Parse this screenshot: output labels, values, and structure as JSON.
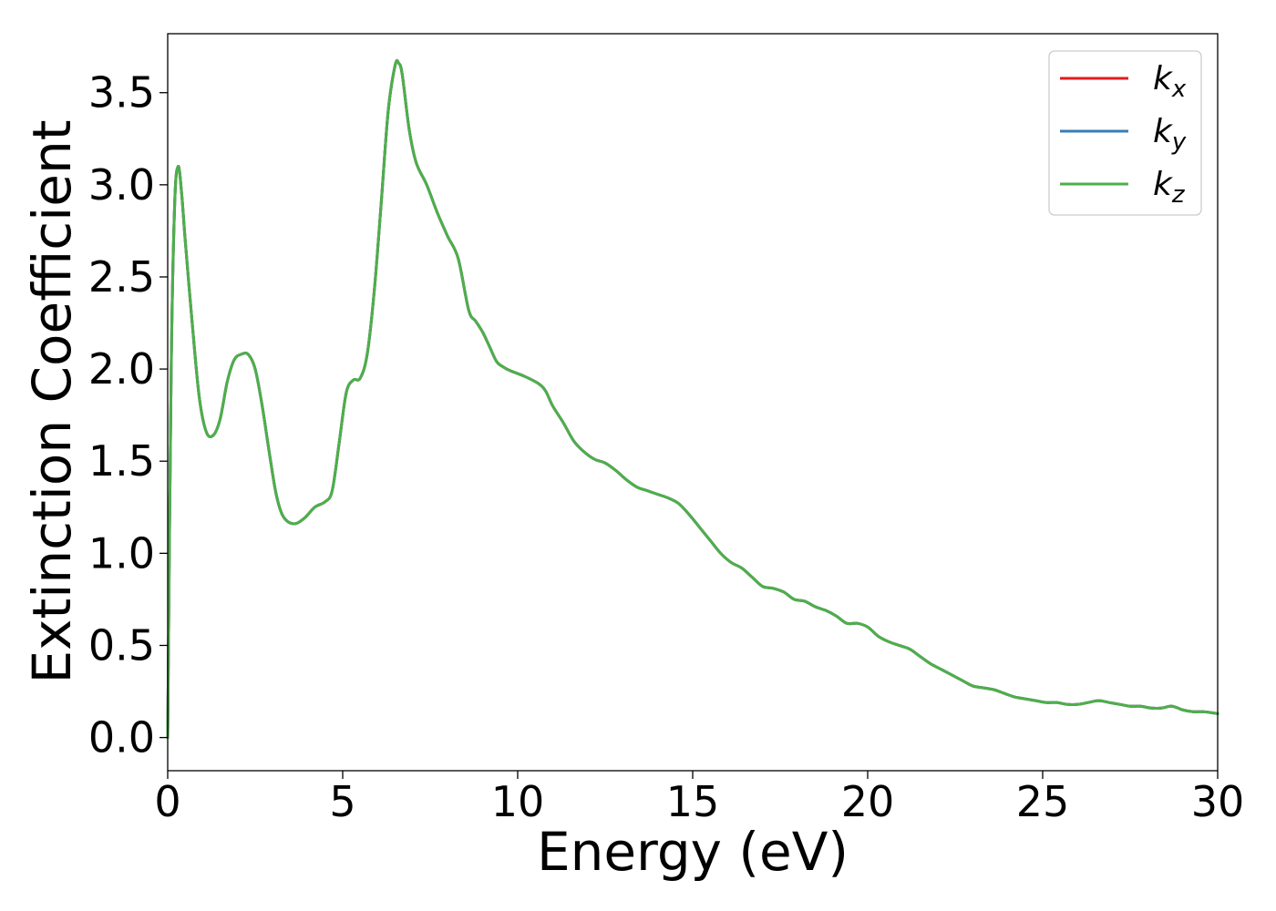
{
  "chart_data": {
    "type": "line",
    "title": "",
    "xlabel": "Energy (eV)",
    "ylabel": "Extinction Coefficient",
    "xlim": [
      0,
      30
    ],
    "ylim": [
      -0.18,
      3.82
    ],
    "xticks": [
      0,
      5,
      10,
      15,
      20,
      25,
      30
    ],
    "xtick_labels": [
      "0",
      "5",
      "10",
      "15",
      "20",
      "25",
      "30"
    ],
    "yticks": [
      0.0,
      0.5,
      1.0,
      1.5,
      2.0,
      2.5,
      3.0,
      3.5
    ],
    "ytick_labels": [
      "0.0",
      "0.5",
      "1.0",
      "1.5",
      "2.0",
      "2.5",
      "3.0",
      "3.5"
    ],
    "grid": false,
    "legend_position": "top-right",
    "x": [
      0.0,
      0.1,
      0.2,
      0.3,
      0.4,
      0.5,
      0.7,
      0.9,
      1.1,
      1.3,
      1.5,
      1.7,
      1.9,
      2.1,
      2.3,
      2.5,
      2.7,
      2.9,
      3.1,
      3.3,
      3.6,
      3.9,
      4.2,
      4.5,
      4.7,
      4.9,
      5.1,
      5.3,
      5.5,
      5.7,
      5.9,
      6.1,
      6.3,
      6.5,
      6.6,
      6.7,
      6.9,
      7.1,
      7.4,
      7.7,
      8.0,
      8.3,
      8.6,
      8.8,
      9.0,
      9.2,
      9.4,
      9.6,
      9.8,
      10.2,
      10.6,
      10.8,
      11.0,
      11.3,
      11.6,
      11.9,
      12.2,
      12.5,
      12.8,
      13.1,
      13.4,
      13.7,
      14.0,
      14.3,
      14.6,
      14.9,
      15.2,
      15.5,
      15.8,
      16.1,
      16.4,
      16.7,
      17.0,
      17.3,
      17.6,
      17.9,
      18.2,
      18.5,
      18.8,
      19.1,
      19.4,
      19.7,
      20.0,
      20.3,
      20.6,
      20.9,
      21.2,
      21.5,
      21.8,
      22.1,
      22.4,
      22.7,
      23.0,
      23.3,
      23.6,
      23.9,
      24.2,
      24.5,
      24.8,
      25.1,
      25.4,
      25.7,
      26.0,
      26.3,
      26.6,
      26.9,
      27.2,
      27.5,
      27.8,
      28.1,
      28.4,
      28.7,
      29.0,
      29.3,
      29.6,
      30.0
    ],
    "series": [
      {
        "name": "k_x",
        "color": "#e41a1c",
        "values": [
          0.0,
          2.0,
          2.9,
          3.1,
          2.95,
          2.7,
          2.25,
          1.85,
          1.66,
          1.64,
          1.73,
          1.93,
          2.05,
          2.08,
          2.08,
          2.0,
          1.8,
          1.55,
          1.32,
          1.2,
          1.16,
          1.19,
          1.25,
          1.28,
          1.34,
          1.6,
          1.87,
          1.94,
          1.95,
          2.08,
          2.42,
          2.9,
          3.4,
          3.65,
          3.66,
          3.6,
          3.3,
          3.12,
          3.0,
          2.85,
          2.72,
          2.6,
          2.32,
          2.26,
          2.2,
          2.12,
          2.04,
          2.01,
          1.99,
          1.96,
          1.92,
          1.88,
          1.8,
          1.71,
          1.61,
          1.55,
          1.51,
          1.49,
          1.45,
          1.4,
          1.36,
          1.34,
          1.32,
          1.3,
          1.27,
          1.21,
          1.14,
          1.07,
          1.0,
          0.95,
          0.92,
          0.87,
          0.82,
          0.81,
          0.79,
          0.75,
          0.74,
          0.71,
          0.69,
          0.66,
          0.62,
          0.62,
          0.6,
          0.55,
          0.52,
          0.5,
          0.48,
          0.44,
          0.4,
          0.37,
          0.34,
          0.31,
          0.28,
          0.27,
          0.26,
          0.24,
          0.22,
          0.21,
          0.2,
          0.19,
          0.19,
          0.18,
          0.18,
          0.19,
          0.2,
          0.19,
          0.18,
          0.17,
          0.17,
          0.16,
          0.16,
          0.17,
          0.15,
          0.14,
          0.14,
          0.13
        ]
      },
      {
        "name": "k_y",
        "color": "#377eb8",
        "values": [
          0.0,
          2.0,
          2.9,
          3.1,
          2.95,
          2.7,
          2.25,
          1.85,
          1.66,
          1.64,
          1.73,
          1.93,
          2.05,
          2.08,
          2.08,
          2.0,
          1.8,
          1.55,
          1.32,
          1.2,
          1.16,
          1.19,
          1.25,
          1.28,
          1.34,
          1.6,
          1.87,
          1.94,
          1.95,
          2.08,
          2.42,
          2.9,
          3.4,
          3.65,
          3.66,
          3.6,
          3.3,
          3.12,
          3.0,
          2.85,
          2.72,
          2.6,
          2.32,
          2.26,
          2.2,
          2.12,
          2.04,
          2.01,
          1.99,
          1.96,
          1.92,
          1.88,
          1.8,
          1.71,
          1.61,
          1.55,
          1.51,
          1.49,
          1.45,
          1.4,
          1.36,
          1.34,
          1.32,
          1.3,
          1.27,
          1.21,
          1.14,
          1.07,
          1.0,
          0.95,
          0.92,
          0.87,
          0.82,
          0.81,
          0.79,
          0.75,
          0.74,
          0.71,
          0.69,
          0.66,
          0.62,
          0.62,
          0.6,
          0.55,
          0.52,
          0.5,
          0.48,
          0.44,
          0.4,
          0.37,
          0.34,
          0.31,
          0.28,
          0.27,
          0.26,
          0.24,
          0.22,
          0.21,
          0.2,
          0.19,
          0.19,
          0.18,
          0.18,
          0.19,
          0.2,
          0.19,
          0.18,
          0.17,
          0.17,
          0.16,
          0.16,
          0.17,
          0.15,
          0.14,
          0.14,
          0.13
        ]
      },
      {
        "name": "k_z",
        "color": "#4daf4a",
        "values": [
          0.0,
          2.0,
          2.9,
          3.1,
          2.95,
          2.7,
          2.25,
          1.85,
          1.66,
          1.64,
          1.73,
          1.93,
          2.05,
          2.08,
          2.08,
          2.0,
          1.8,
          1.55,
          1.32,
          1.2,
          1.16,
          1.19,
          1.25,
          1.28,
          1.34,
          1.6,
          1.87,
          1.94,
          1.95,
          2.08,
          2.42,
          2.9,
          3.4,
          3.65,
          3.66,
          3.6,
          3.3,
          3.12,
          3.0,
          2.85,
          2.72,
          2.6,
          2.32,
          2.26,
          2.2,
          2.12,
          2.04,
          2.01,
          1.99,
          1.96,
          1.92,
          1.88,
          1.8,
          1.71,
          1.61,
          1.55,
          1.51,
          1.49,
          1.45,
          1.4,
          1.36,
          1.34,
          1.32,
          1.3,
          1.27,
          1.21,
          1.14,
          1.07,
          1.0,
          0.95,
          0.92,
          0.87,
          0.82,
          0.81,
          0.79,
          0.75,
          0.74,
          0.71,
          0.69,
          0.66,
          0.62,
          0.62,
          0.6,
          0.55,
          0.52,
          0.5,
          0.48,
          0.44,
          0.4,
          0.37,
          0.34,
          0.31,
          0.28,
          0.27,
          0.26,
          0.24,
          0.22,
          0.21,
          0.2,
          0.19,
          0.19,
          0.18,
          0.18,
          0.19,
          0.2,
          0.19,
          0.18,
          0.17,
          0.17,
          0.16,
          0.16,
          0.17,
          0.15,
          0.14,
          0.14,
          0.13
        ]
      }
    ],
    "legend": [
      {
        "base": "k",
        "sub": "x",
        "color": "#e41a1c"
      },
      {
        "base": "k",
        "sub": "y",
        "color": "#377eb8"
      },
      {
        "base": "k",
        "sub": "z",
        "color": "#4daf4a"
      }
    ]
  }
}
